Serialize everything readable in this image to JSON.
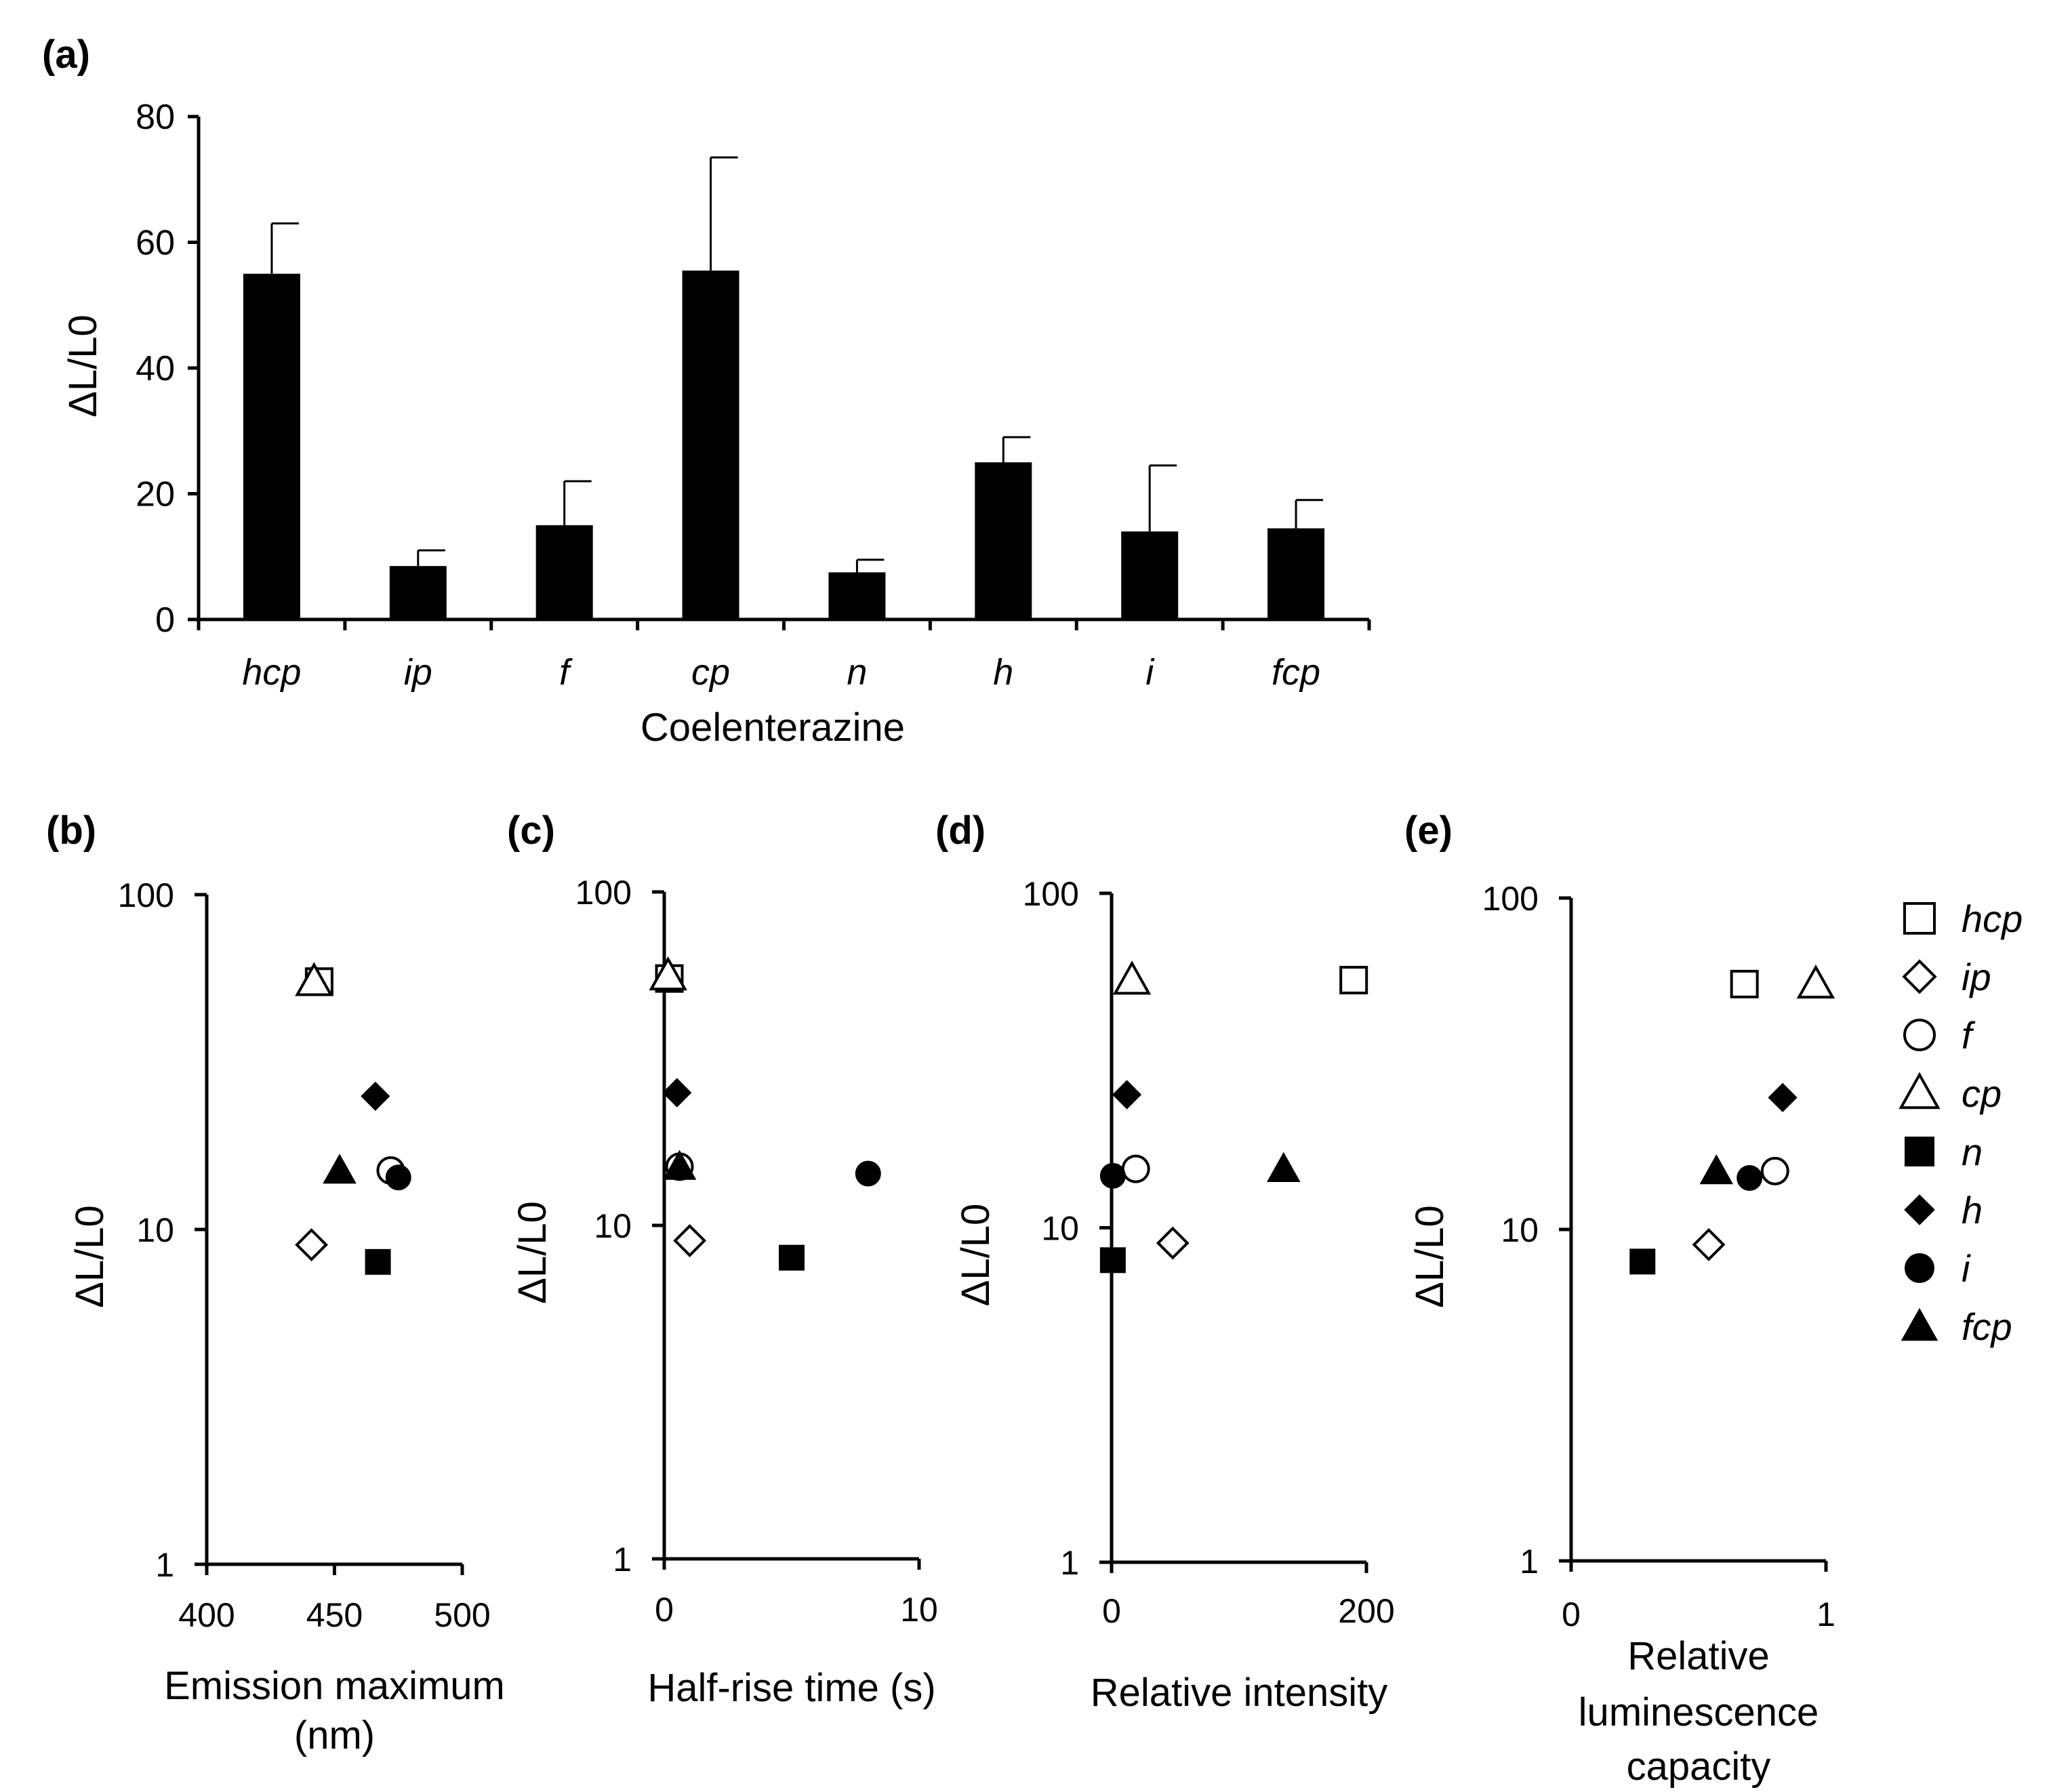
{
  "chart_data": [
    {
      "id": "a",
      "type": "bar",
      "panel_label": "(a)",
      "title": "",
      "xlabel": "Coelenterazine",
      "ylabel": "ΔL/L0",
      "ylim": [
        0,
        80
      ],
      "yticks": [
        "0",
        "20",
        "40",
        "60",
        "80"
      ],
      "categories": [
        "hcp",
        "ip",
        "f",
        "cp",
        "n",
        "h",
        "i",
        "fcp"
      ],
      "values": [
        55,
        8.5,
        15,
        55.5,
        7.5,
        25,
        14,
        14.5
      ],
      "errors": [
        8,
        2.5,
        7,
        18,
        2,
        4,
        10.5,
        4.5
      ]
    },
    {
      "id": "b",
      "type": "scatter",
      "panel_label": "(b)",
      "xlabel": [
        "Emission maximum",
        "(nm)"
      ],
      "ylabel": "ΔL/L0",
      "yscale": "log",
      "xlim": [
        400,
        500
      ],
      "ylim": [
        1,
        100
      ],
      "xticks": [
        "400",
        "450",
        "500"
      ],
      "yticks": [
        "1",
        "10",
        "100"
      ],
      "points": [
        {
          "name": "hcp",
          "x": 444,
          "y": 55
        },
        {
          "name": "ip",
          "x": 441,
          "y": 9
        },
        {
          "name": "f",
          "x": 472,
          "y": 15
        },
        {
          "name": "cp",
          "x": 442,
          "y": 55
        },
        {
          "name": "n",
          "x": 467,
          "y": 8
        },
        {
          "name": "h",
          "x": 466,
          "y": 25
        },
        {
          "name": "i",
          "x": 475,
          "y": 14.3
        },
        {
          "name": "fcp",
          "x": 452,
          "y": 15
        }
      ]
    },
    {
      "id": "c",
      "type": "scatter",
      "panel_label": "(c)",
      "xlabel": [
        "Half-rise time (s)"
      ],
      "ylabel": "ΔL/L0",
      "yscale": "log",
      "xlim": [
        0,
        10
      ],
      "ylim": [
        1,
        100
      ],
      "xticks": [
        "0",
        "10"
      ],
      "yticks": [
        "1",
        "10",
        "100"
      ],
      "points": [
        {
          "name": "hcp",
          "x": 0.2,
          "y": 55
        },
        {
          "name": "ip",
          "x": 1.0,
          "y": 9
        },
        {
          "name": "f",
          "x": 0.6,
          "y": 15
        },
        {
          "name": "cp",
          "x": 0.15,
          "y": 56
        },
        {
          "name": "n",
          "x": 5.0,
          "y": 8
        },
        {
          "name": "h",
          "x": 0.5,
          "y": 25
        },
        {
          "name": "i",
          "x": 8.0,
          "y": 14.3
        },
        {
          "name": "fcp",
          "x": 0.6,
          "y": 15
        }
      ]
    },
    {
      "id": "d",
      "type": "scatter",
      "panel_label": "(d)",
      "xlabel": [
        "Relative intensity"
      ],
      "ylabel": "ΔL/L0",
      "yscale": "log",
      "xlim": [
        0,
        200
      ],
      "ylim": [
        1,
        100
      ],
      "xticks": [
        "0",
        "200"
      ],
      "yticks": [
        "1",
        "10",
        "100"
      ],
      "points": [
        {
          "name": "hcp",
          "x": 190,
          "y": 55
        },
        {
          "name": "ip",
          "x": 48,
          "y": 9
        },
        {
          "name": "f",
          "x": 19,
          "y": 15
        },
        {
          "name": "cp",
          "x": 16,
          "y": 55
        },
        {
          "name": "n",
          "x": 1,
          "y": 8
        },
        {
          "name": "h",
          "x": 12,
          "y": 25
        },
        {
          "name": "i",
          "x": 1,
          "y": 14.3
        },
        {
          "name": "fcp",
          "x": 135,
          "y": 15
        }
      ]
    },
    {
      "id": "e",
      "type": "scatter",
      "panel_label": "(e)",
      "xlabel": [
        "Relative",
        "luminescence",
        "capacity"
      ],
      "ylabel": "ΔL/L0",
      "yscale": "log",
      "xlim": [
        0,
        1
      ],
      "ylim": [
        1,
        100
      ],
      "xticks": [
        "0",
        "1"
      ],
      "yticks": [
        "1",
        "10",
        "100"
      ],
      "points": [
        {
          "name": "hcp",
          "x": 0.68,
          "y": 55
        },
        {
          "name": "ip",
          "x": 0.54,
          "y": 9
        },
        {
          "name": "f",
          "x": 0.8,
          "y": 15
        },
        {
          "name": "cp",
          "x": 0.96,
          "y": 55
        },
        {
          "name": "n",
          "x": 0.28,
          "y": 8
        },
        {
          "name": "h",
          "x": 0.83,
          "y": 25
        },
        {
          "name": "i",
          "x": 0.7,
          "y": 14.3
        },
        {
          "name": "fcp",
          "x": 0.57,
          "y": 15
        }
      ]
    }
  ],
  "legend": {
    "items": [
      {
        "name": "hcp",
        "marker": "square-open"
      },
      {
        "name": "ip",
        "marker": "diamond-open"
      },
      {
        "name": "f",
        "marker": "circle-open"
      },
      {
        "name": "cp",
        "marker": "triangle-open"
      },
      {
        "name": "n",
        "marker": "square-filled"
      },
      {
        "name": "h",
        "marker": "diamond-filled"
      },
      {
        "name": "i",
        "marker": "circle-filled"
      },
      {
        "name": "fcp",
        "marker": "triangle-filled"
      }
    ]
  },
  "colors": {
    "ink": "#000000",
    "background": "#ffffff"
  }
}
